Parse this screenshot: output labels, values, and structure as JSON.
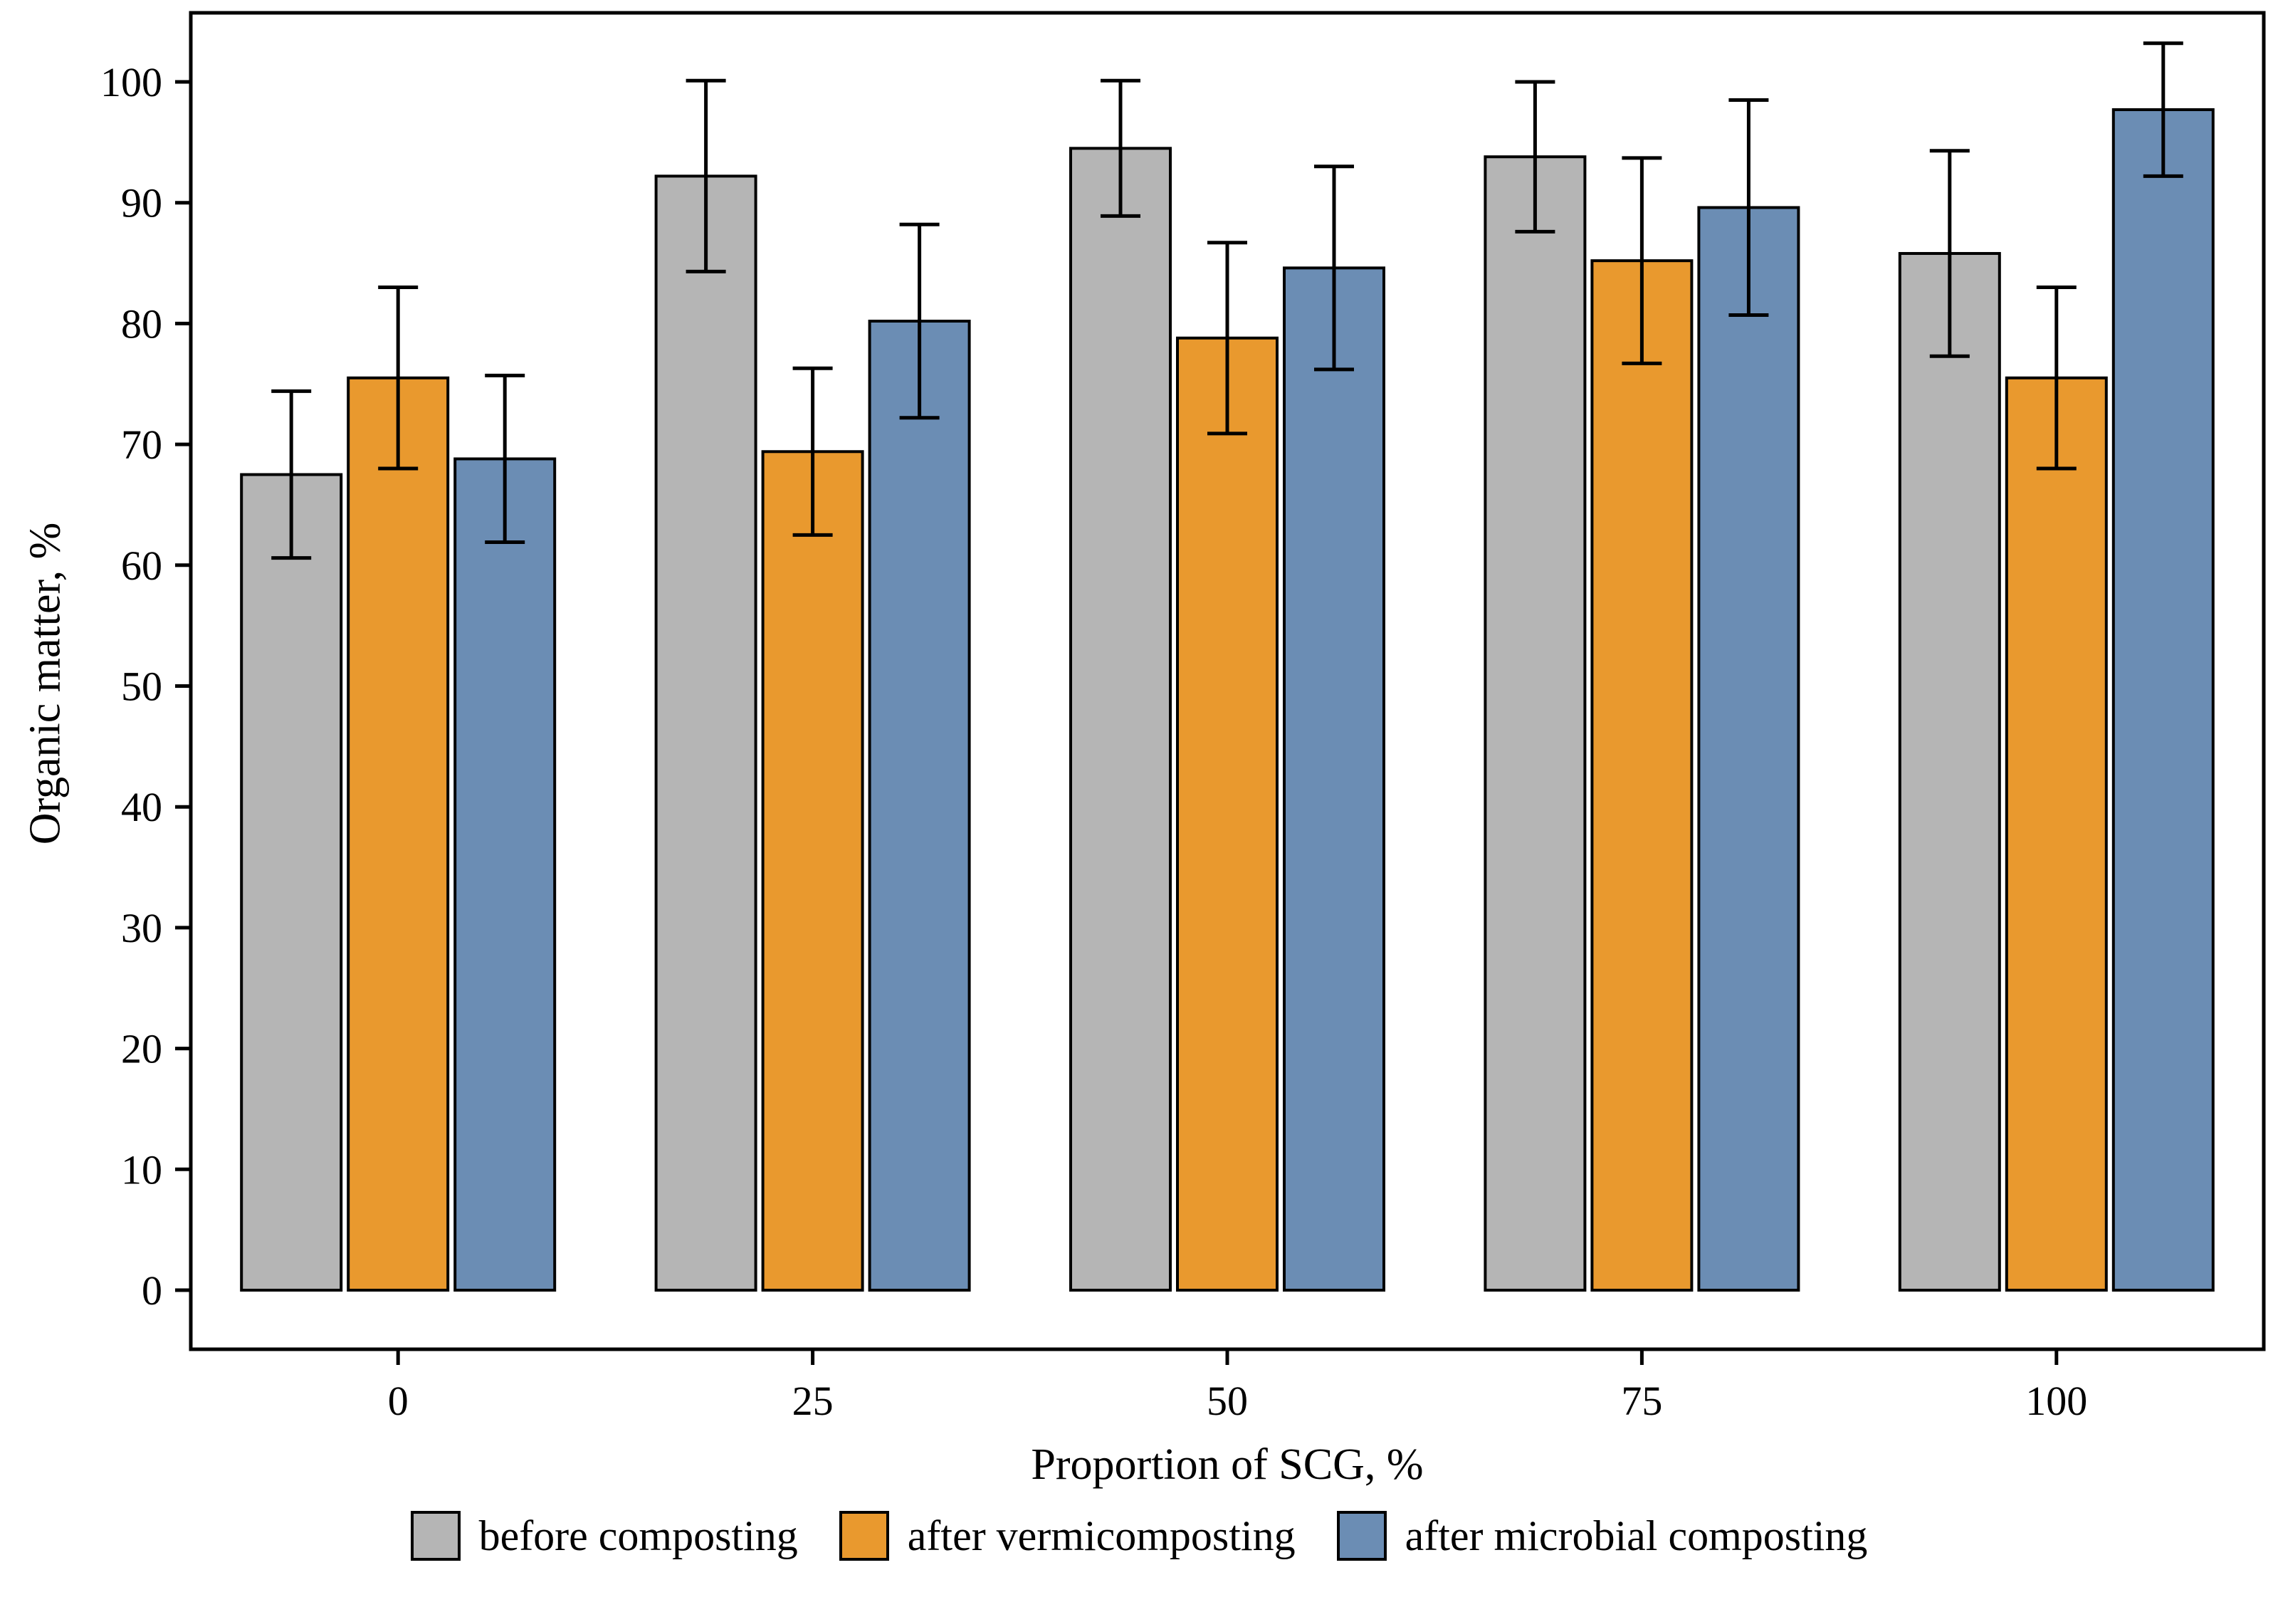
{
  "figure": {
    "background": "#ffffff",
    "frame_color": "#000000"
  },
  "chart_data": {
    "type": "bar",
    "title": "",
    "xlabel": "Proportion of SCG, %",
    "ylabel": "Organic matter, %",
    "categories": [
      "0",
      "25",
      "50",
      "75",
      "100"
    ],
    "ylim": [
      0,
      100
    ],
    "yticks": [
      0,
      10,
      20,
      30,
      40,
      50,
      60,
      70,
      80,
      90,
      100
    ],
    "grid": false,
    "legend_position": "bottom",
    "bar_outline_color": "#000000",
    "error_bar_color": "#000000",
    "series": [
      {
        "name": "before composting",
        "color": "#b5b5b5",
        "values": [
          67.5,
          92.2,
          94.5,
          93.8,
          85.8
        ],
        "errors": [
          6.9,
          7.9,
          5.6,
          6.2,
          8.5
        ]
      },
      {
        "name": "after vermicomposting",
        "color": "#e9992e",
        "values": [
          75.5,
          69.4,
          78.8,
          85.2,
          75.5
        ],
        "errors": [
          7.5,
          6.9,
          7.9,
          8.5,
          7.5
        ]
      },
      {
        "name": "after microbial composting",
        "color": "#6b8db4",
        "values": [
          68.8,
          80.2,
          84.6,
          89.6,
          97.7
        ],
        "errors": [
          6.9,
          8.0,
          8.4,
          8.9,
          5.5
        ]
      }
    ]
  }
}
